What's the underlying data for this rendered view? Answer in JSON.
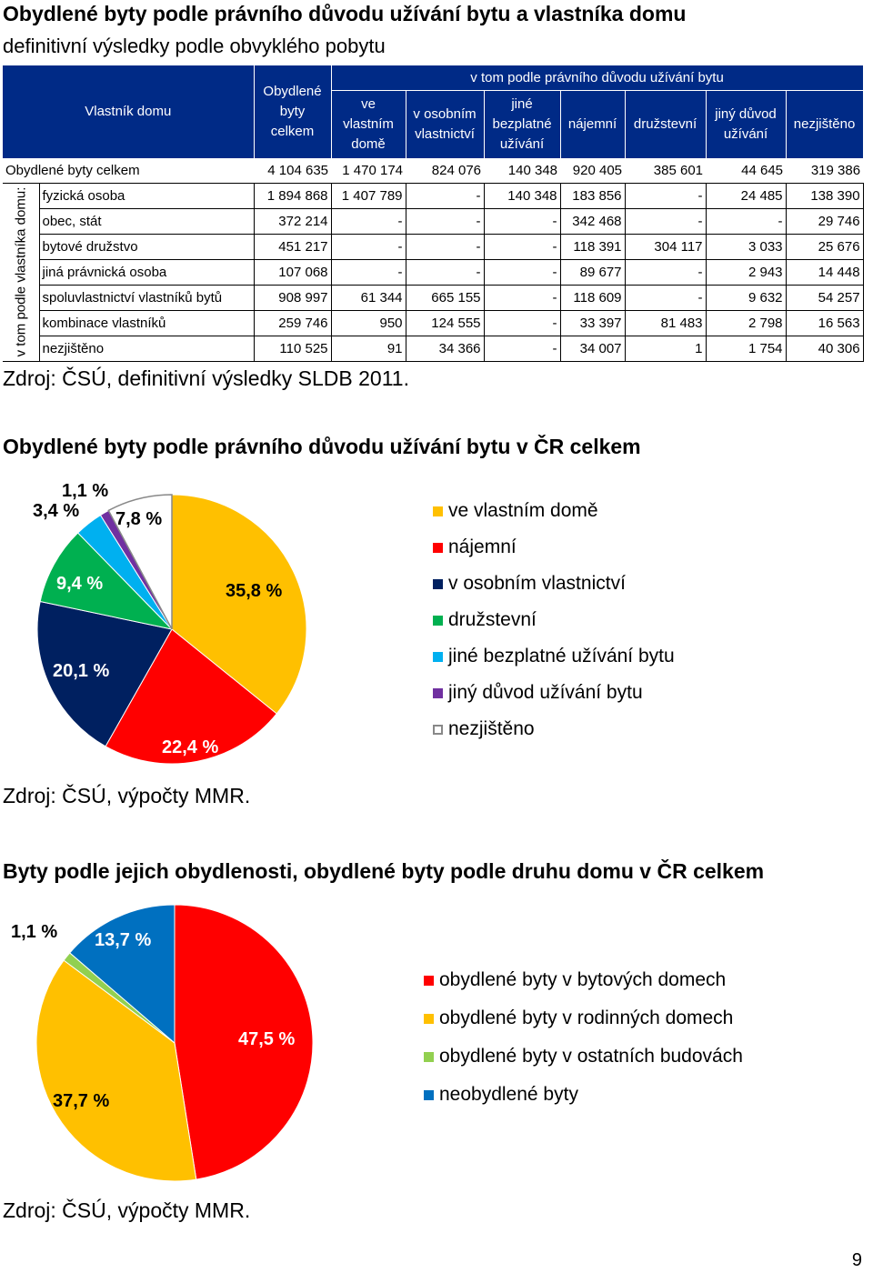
{
  "section1": {
    "title": "Obydlené byty podle právního důvodu užívání bytu a vlastníka domu",
    "subtitle": "definitivní výsledky podle obvyklého pobytu",
    "table": {
      "owner_header": "Vlastník domu",
      "total_header": "Obydlené byty celkem",
      "group_header": "v tom podle právního důvodu užívání bytu",
      "col_headers": [
        "ve vlastním domě",
        "v osobním vlastnictví",
        "jiné bezplatné užívání",
        "nájemní",
        "družstevní",
        "jiný důvod užívání",
        "nezjištěno"
      ],
      "total_row": {
        "label": "Obydlené byty celkem",
        "values": [
          "4 104 635",
          "1 470 174",
          "824 076",
          "140 348",
          "920 405",
          "385 601",
          "44 645",
          "319 386"
        ]
      },
      "side_label": "v tom podle vlastníka domu:",
      "rows": [
        {
          "label": "fyzická osoba",
          "values": [
            "1 894 868",
            "1 407 789",
            "-",
            "140 348",
            "183 856",
            "-",
            "24 485",
            "138 390"
          ]
        },
        {
          "label": "obec, stát",
          "values": [
            "372 214",
            "-",
            "-",
            "-",
            "342 468",
            "-",
            "-",
            "29 746"
          ]
        },
        {
          "label": "bytové družstvo",
          "values": [
            "451 217",
            "-",
            "-",
            "-",
            "118 391",
            "304 117",
            "3 033",
            "25 676"
          ]
        },
        {
          "label": "jiná právnická osoba",
          "values": [
            "107 068",
            "-",
            "-",
            "-",
            "89 677",
            "-",
            "2 943",
            "14 448"
          ]
        },
        {
          "label": "spoluvlastnictví vlastníků bytů",
          "values": [
            "908 997",
            "61 344",
            "665 155",
            "-",
            "118 609",
            "-",
            "9 632",
            "54 257"
          ]
        },
        {
          "label": "kombinace vlastníků",
          "values": [
            "259 746",
            "950",
            "124 555",
            "-",
            "33 397",
            "81 483",
            "2 798",
            "16 563"
          ]
        },
        {
          "label": "nezjištěno",
          "values": [
            "110 525",
            "91",
            "34 366",
            "-",
            "34 007",
            "1",
            "1 754",
            "40 306"
          ]
        }
      ]
    },
    "source": "Zdroj: ČSÚ, definitivní výsledky SLDB 2011."
  },
  "section2": {
    "title": "Obydlené byty podle právního důvodu užívání bytu v ČR celkem",
    "source": "Zdroj: ČSÚ, výpočty MMR."
  },
  "section3": {
    "title": "Byty podle jejich obydlenosti, obydlené byty podle druhu domu v ČR celkem",
    "source": "Zdroj: ČSÚ, výpočty MMR."
  },
  "page_number": "9",
  "chart_data": [
    {
      "type": "pie",
      "title": "Obydlené byty podle právního důvodu užívání bytu v ČR celkem",
      "slices": [
        {
          "name": "ve vlastním domě",
          "value": 35.8,
          "label": "35,8 %",
          "color": "#ffc000"
        },
        {
          "name": "nájemní",
          "value": 22.4,
          "label": "22,4 %",
          "color": "#ff0000"
        },
        {
          "name": "v osobním vlastnictví",
          "value": 20.1,
          "label": "20,1 %",
          "color": "#002060"
        },
        {
          "name": "družstevní",
          "value": 9.4,
          "label": "9,4 %",
          "color": "#00b050"
        },
        {
          "name": "jiné bezplatné užívání bytu",
          "value": 3.4,
          "label": "3,4 %",
          "color": "#00b0f0"
        },
        {
          "name": "jiný důvod užívání bytu",
          "value": 1.1,
          "label": "1,1 %",
          "color": "#7030a0"
        },
        {
          "name": "nezjištěno",
          "value": 7.8,
          "label": "7,8 %",
          "color": "#ffffff"
        }
      ],
      "legend": "right"
    },
    {
      "type": "pie",
      "title": "Byty podle jejich obydlenosti, obydlené byty podle druhu domu v ČR celkem",
      "slices": [
        {
          "name": "obydlené byty v bytových domech",
          "value": 47.5,
          "label": "47,5 %",
          "color": "#ff0000"
        },
        {
          "name": "obydlené byty v rodinných domech",
          "value": 37.7,
          "label": "37,7 %",
          "color": "#ffc000"
        },
        {
          "name": "obydlené byty v ostatních budovách",
          "value": 1.1,
          "label": "1,1 %",
          "color": "#92d050"
        },
        {
          "name": "neobydlené byty",
          "value": 13.7,
          "label": "13,7 %",
          "color": "#0070c0"
        }
      ],
      "legend": "right"
    }
  ]
}
